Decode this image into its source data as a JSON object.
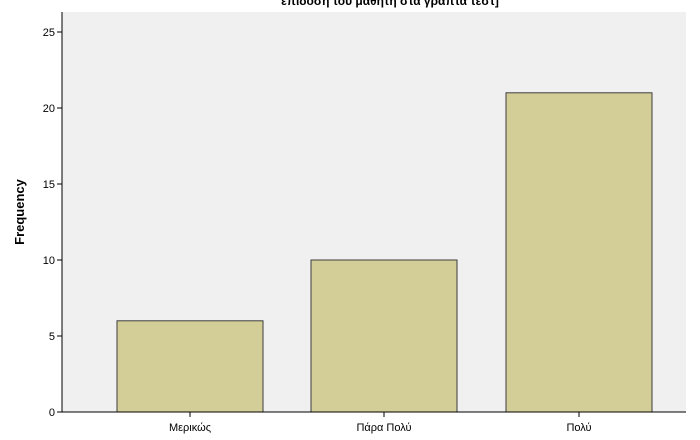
{
  "colors": {
    "plot_background": "#f0f0f0",
    "bar_fill": "#d3ce97",
    "bar_stroke": "#3c3c3c",
    "axis": "#000000"
  },
  "chart_data": {
    "type": "bar",
    "title": "επίδοση του μαθητή στα γραπτά τεστ]",
    "xlabel": "",
    "ylabel": "Frequency",
    "categories": [
      "Μερικώς",
      "Πάρα Πολύ",
      "Πολύ"
    ],
    "values": [
      6,
      10,
      21
    ],
    "ylim": [
      0,
      25
    ],
    "yticks": [
      0,
      5,
      10,
      15,
      20,
      25
    ],
    "grid": false,
    "legend": "none"
  }
}
